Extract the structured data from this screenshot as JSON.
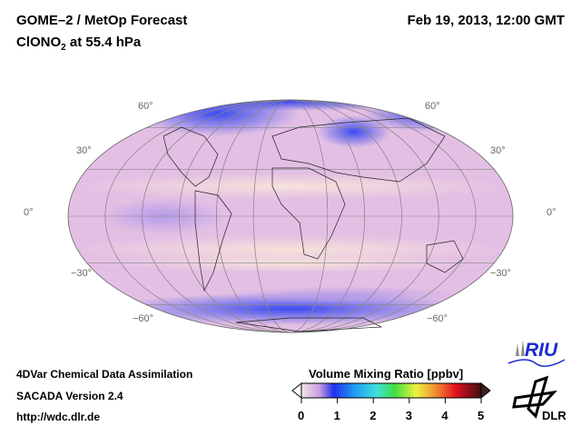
{
  "header": {
    "title": "GOME–2 / MetOp Forecast",
    "species_main": "ClONO",
    "species_sub": "2",
    "species_rest": " at 55.4 hPa",
    "date": "Feb 19, 2013, 12:00 GMT"
  },
  "map": {
    "lat_labels": [
      "60°",
      "30°",
      "0°",
      "−30°",
      "−60°"
    ],
    "colors": {
      "background": "#e8c4e4",
      "low": "#3b4bf0",
      "mid": "#f4dcd8"
    }
  },
  "footer": {
    "line1": "4DVar Chemical Data Assimilation",
    "line2": "SACADA Version 2.4",
    "line3": "http://wdc.dlr.de"
  },
  "colorbar": {
    "title": "Volume Mixing Ratio [ppbv]",
    "ticks": [
      "0",
      "1",
      "2",
      "3",
      "4",
      "5"
    ],
    "min": 0,
    "max": 5
  },
  "logos": {
    "riu": "RIU",
    "dlr": "DLR"
  }
}
